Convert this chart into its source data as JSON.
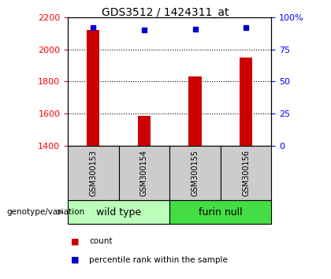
{
  "title": "GDS3512 / 1424311_at",
  "samples": [
    "GSM300153",
    "GSM300154",
    "GSM300155",
    "GSM300156"
  ],
  "counts": [
    2120,
    1585,
    1830,
    1950
  ],
  "percentiles": [
    92,
    90,
    91,
    92
  ],
  "ylim_left": [
    1400,
    2200
  ],
  "ylim_right": [
    0,
    100
  ],
  "yticks_left": [
    1400,
    1600,
    1800,
    2000,
    2200
  ],
  "yticks_right": [
    0,
    25,
    50,
    75,
    100
  ],
  "ytick_right_labels": [
    "0",
    "25",
    "50",
    "75",
    "100%"
  ],
  "groups": [
    {
      "label": "wild type",
      "indices": [
        0,
        1
      ],
      "color": "#bbffbb"
    },
    {
      "label": "furin null",
      "indices": [
        2,
        3
      ],
      "color": "#44dd44"
    }
  ],
  "bar_color": "#cc0000",
  "point_color": "#0000cc",
  "sample_box_color": "#cccccc",
  "plot_bg": "#ffffff",
  "genotype_label": "genotype/variation",
  "legend_count_label": "count",
  "legend_pct_label": "percentile rank within the sample"
}
